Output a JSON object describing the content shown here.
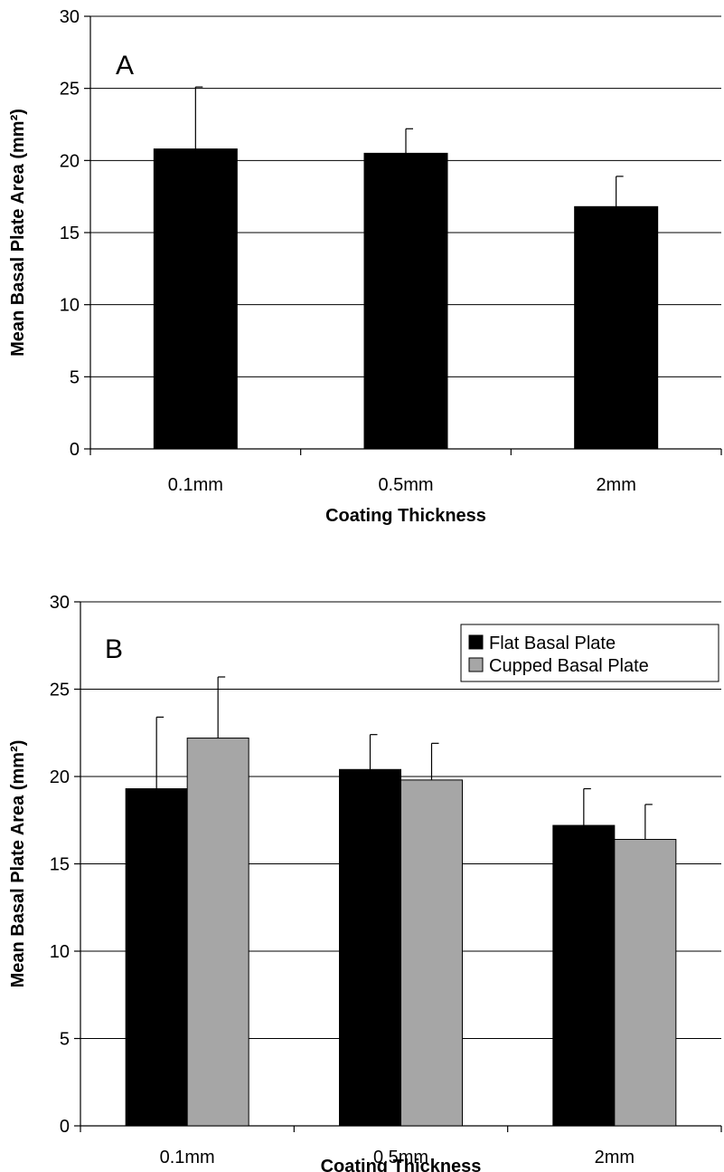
{
  "chart_data": [
    {
      "type": "bar",
      "panel_label": "A",
      "categories": [
        "0.1mm",
        "0.5mm",
        "2mm"
      ],
      "series": [
        {
          "values": [
            20.8,
            20.5,
            16.8
          ],
          "errors": [
            4.3,
            1.7,
            2.1
          ],
          "color": "#000000"
        }
      ],
      "xlabel": "Coating Thickness",
      "ylabel": "Mean Basal Plate Area (mm²)",
      "ylim": [
        0,
        30
      ],
      "yticks": [
        "0",
        "5",
        "10",
        "15",
        "20",
        "25",
        "30"
      ],
      "grid": true,
      "legend": null
    },
    {
      "type": "bar",
      "panel_label": "B",
      "categories": [
        "0.1mm",
        "0.5mm",
        "2mm"
      ],
      "series": [
        {
          "name": "Flat Basal Plate",
          "values": [
            19.3,
            20.4,
            17.2
          ],
          "errors": [
            4.1,
            2.0,
            2.1
          ],
          "color": "#000000"
        },
        {
          "name": "Cupped Basal Plate",
          "values": [
            22.2,
            19.8,
            16.4
          ],
          "errors": [
            3.5,
            2.1,
            2.0
          ],
          "color": "#a6a6a6"
        }
      ],
      "xlabel": "Coating Thickness",
      "ylabel": "Mean Basal Plate Area (mm²)",
      "ylim": [
        0,
        30
      ],
      "yticks": [
        "0",
        "5",
        "10",
        "15",
        "20",
        "25",
        "30"
      ],
      "grid": true,
      "legend": "top-right"
    }
  ]
}
